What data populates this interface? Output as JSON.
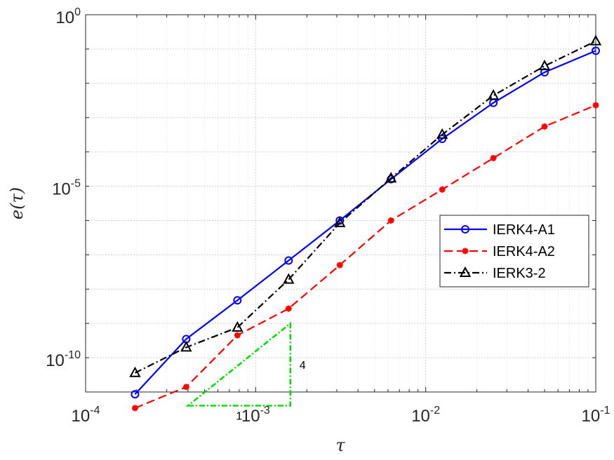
{
  "chart_data": {
    "type": "line",
    "xscale": "log",
    "yscale": "log",
    "xlim": [
      0.0001,
      0.1
    ],
    "ylim": [
      1e-11,
      1
    ],
    "grid": true,
    "xlabel": "τ",
    "ylabel": "e(τ)",
    "x_ticks": [
      {
        "value": 0.0001,
        "base": "10",
        "exp": "-4"
      },
      {
        "value": 0.001,
        "base": "10",
        "exp": "-3"
      },
      {
        "value": 0.01,
        "base": "10",
        "exp": "-2"
      },
      {
        "value": 0.1,
        "base": "10",
        "exp": "-1"
      }
    ],
    "y_ticks": [
      {
        "value": 1e-10,
        "base": "10",
        "exp": "-10"
      },
      {
        "value": 1e-05,
        "base": "10",
        "exp": "-5"
      },
      {
        "value": 1,
        "base": "10",
        "exp": "0"
      }
    ],
    "legend": {
      "position": "east"
    },
    "series": [
      {
        "name": "IERK4-A1",
        "color": "#0000ff",
        "dash": "solid",
        "marker": "circle",
        "x": [
          0.0001953125,
          0.000390625,
          0.00078125,
          0.0015625,
          0.003125,
          0.00625,
          0.0125,
          0.025,
          0.05,
          0.1
        ],
        "y": [
          8.6e-12,
          3.5e-10,
          4.7e-09,
          6.8e-08,
          1e-06,
          1.6e-05,
          0.00024,
          0.0027,
          0.021,
          0.089
        ]
      },
      {
        "name": "IERK4-A2",
        "color": "#ff0000",
        "dash": "dashed",
        "marker": "asterisk",
        "x": [
          0.0001953125,
          0.000390625,
          0.00078125,
          0.0015625,
          0.003125,
          0.00625,
          0.0125,
          0.025,
          0.05,
          0.1
        ],
        "y": [
          3.4e-12,
          1.4e-11,
          4.5e-10,
          2.7e-09,
          5e-08,
          1e-06,
          8e-06,
          6.6e-05,
          0.00055,
          0.0023
        ]
      },
      {
        "name": "IERK3-2",
        "color": "#000000",
        "dash": "dashdot",
        "marker": "triangle",
        "x": [
          0.0001953125,
          0.000390625,
          0.00078125,
          0.0015625,
          0.003125,
          0.00625,
          0.0125,
          0.025,
          0.05,
          0.1
        ],
        "y": [
          3.6e-11,
          2e-10,
          7.6e-10,
          1.9e-08,
          8.5e-07,
          1.7e-05,
          0.00032,
          0.0044,
          0.032,
          0.17
        ]
      }
    ],
    "annotations": [
      {
        "type": "slope-triangle",
        "color": "#00dd00",
        "corner_a": {
          "x": 0.0004,
          "y": 4e-12
        },
        "corner_b": {
          "x": 0.0016,
          "y": 4e-12
        },
        "corner_c": {
          "x": 0.0016,
          "y": 1e-09
        },
        "run_label": "1",
        "rise_label": "4"
      }
    ]
  }
}
